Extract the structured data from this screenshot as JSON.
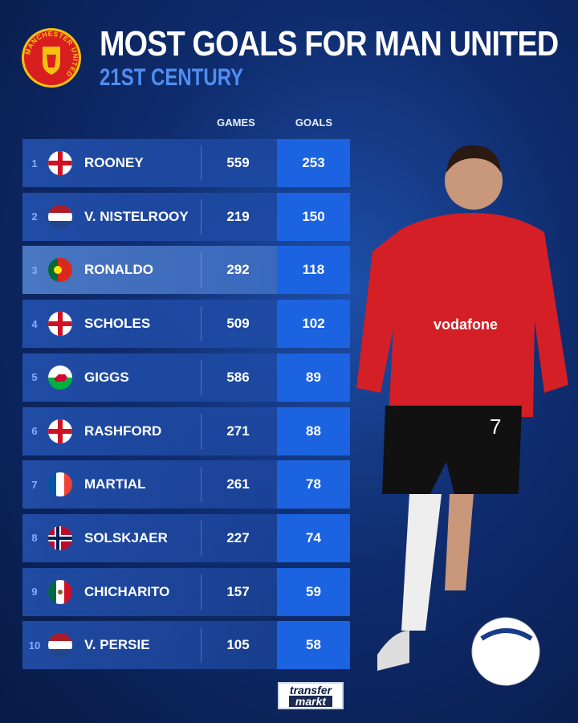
{
  "header": {
    "title": "MOST GOALS FOR MAN UNITED",
    "subtitle": "21ST CENTURY",
    "crest_text": "MANCHESTER UNITED"
  },
  "columns": {
    "games": "GAMES",
    "goals": "GOALS"
  },
  "colors": {
    "accent": "#1b63e0",
    "subtitle": "#4f8ef0",
    "rank": "#7fb0ff"
  },
  "rows": [
    {
      "rank": "1",
      "flag": "england-flag",
      "name": "ROONEY",
      "games": "559",
      "goals": "253"
    },
    {
      "rank": "2",
      "flag": "netherlands-flag",
      "name": "V. NISTELROOY",
      "games": "219",
      "goals": "150"
    },
    {
      "rank": "3",
      "flag": "portugal-flag",
      "name": "RONALDO",
      "games": "292",
      "goals": "118",
      "highlighted": true
    },
    {
      "rank": "4",
      "flag": "england-flag",
      "name": "SCHOLES",
      "games": "509",
      "goals": "102"
    },
    {
      "rank": "5",
      "flag": "wales-flag",
      "name": "GIGGS",
      "games": "586",
      "goals": "89"
    },
    {
      "rank": "6",
      "flag": "england-flag",
      "name": "RASHFORD",
      "games": "271",
      "goals": "88"
    },
    {
      "rank": "7",
      "flag": "france-flag",
      "name": "MARTIAL",
      "games": "261",
      "goals": "78"
    },
    {
      "rank": "8",
      "flag": "norway-flag",
      "name": "SOLSKJAER",
      "games": "227",
      "goals": "74"
    },
    {
      "rank": "9",
      "flag": "mexico-flag",
      "name": "CHICHARITO",
      "games": "157",
      "goals": "59"
    },
    {
      "rank": "10",
      "flag": "netherlands-flag",
      "name": "V. PERSIE",
      "games": "105",
      "goals": "58"
    }
  ],
  "chart_data": {
    "type": "table",
    "title": "MOST GOALS FOR MAN UNITED",
    "subtitle": "21ST CENTURY",
    "columns": [
      "",
      "",
      "GAMES",
      "GOALS"
    ],
    "rows": [
      [
        "1",
        "ROONEY",
        559,
        253
      ],
      [
        "2",
        "V. NISTELROOY",
        219,
        150
      ],
      [
        "3",
        "RONALDO",
        292,
        118
      ],
      [
        "4",
        "SCHOLES",
        509,
        102
      ],
      [
        "5",
        "GIGGS",
        586,
        89
      ],
      [
        "6",
        "RASHFORD",
        271,
        88
      ],
      [
        "7",
        "MARTIAL",
        261,
        78
      ],
      [
        "8",
        "SOLSKJAER",
        227,
        74
      ],
      [
        "9",
        "CHICHARITO",
        157,
        59
      ],
      [
        "10",
        "V. PERSIE",
        105,
        58
      ]
    ]
  },
  "footer": {
    "logo_line1": "transfer",
    "logo_line2": "markt"
  },
  "player_shirt": {
    "sponsor": "vodafone",
    "number": "7"
  }
}
